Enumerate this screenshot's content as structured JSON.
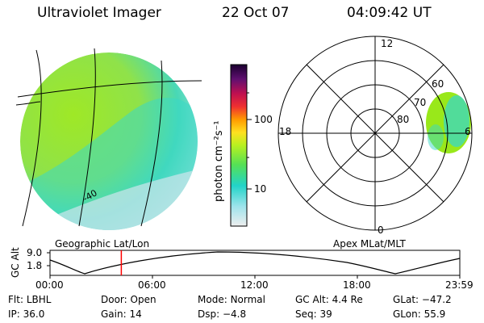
{
  "header": {
    "instrument": "Ultraviolet Imager",
    "date": "22 Oct 07",
    "time": "04:09:42 UT"
  },
  "colorbar": {
    "unit_label": "photon cm⁻²s⁻¹",
    "ticks": [
      "100",
      "10"
    ]
  },
  "panels": {
    "left_caption": "Geographic Lat/Lon",
    "right_caption": "Apex MLat/MLT"
  },
  "polar": {
    "hour_labels": {
      "top": "12",
      "left": "18",
      "right": "6",
      "bottom": "0"
    },
    "lat_labels": [
      "60",
      "70",
      "80"
    ]
  },
  "altitude": {
    "axis_title": "GC Alt",
    "y_ticks": [
      "9.0",
      "1.8"
    ],
    "x_ticks": [
      "00:00",
      "06:00",
      "12:00",
      "18:00",
      "23:59"
    ],
    "current_time_fraction": 0.174
  },
  "info_rows": [
    [
      {
        "key": "Flt:",
        "value": "LBHL"
      },
      {
        "key": "Door:",
        "value": "Open"
      },
      {
        "key": "Mode:",
        "value": "Normal"
      },
      {
        "key": "GC Alt:",
        "value": "4.4 Re"
      },
      {
        "key": "GLat:",
        "value": "−47.2"
      }
    ],
    [
      {
        "key": "IP:",
        "value": "36.0"
      },
      {
        "key": "Gain:",
        "value": "14"
      },
      {
        "key": "Dsp:",
        "value": "−4.8"
      },
      {
        "key": "Seq:",
        "value": "39"
      },
      {
        "key": "GLon:",
        "value": "55.9"
      }
    ]
  ],
  "colors": {
    "aurora_green": "#99e81a",
    "aurora_cyan": "#3ad8c6",
    "aurora_pale": "#cfe6ec",
    "current_time_marker": "#ff0000"
  }
}
